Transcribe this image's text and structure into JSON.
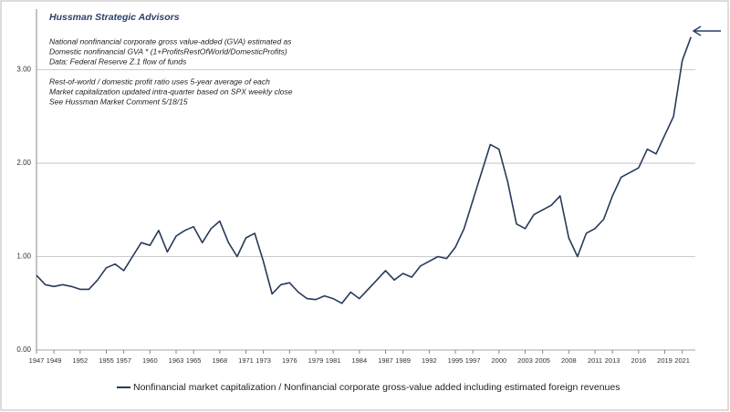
{
  "chart_data": {
    "type": "line",
    "title": "Hussman Strategic Advisors",
    "annotations": [
      "National nonfinancial corporate gross value-added (GVA) estimated as",
      "Domestic nonfinancial GVA * (1+ProfitsRestOfWorld/DomesticProfits)",
      "Data: Federal Reserve Z.1 flow of funds",
      "Rest-of-world / domestic profit ratio uses 5-year average of each",
      "Market capitalization updated intra-quarter  based on SPX weekly close",
      "See Hussman Market Comment 5/18/15"
    ],
    "x": [
      1947,
      1948,
      1949,
      1950,
      1951,
      1952,
      1953,
      1954,
      1955,
      1956,
      1957,
      1958,
      1959,
      1960,
      1961,
      1962,
      1963,
      1964,
      1965,
      1966,
      1967,
      1968,
      1969,
      1970,
      1971,
      1972,
      1973,
      1974,
      1975,
      1976,
      1977,
      1978,
      1979,
      1980,
      1981,
      1982,
      1983,
      1984,
      1985,
      1986,
      1987,
      1988,
      1989,
      1990,
      1991,
      1992,
      1993,
      1994,
      1995,
      1996,
      1997,
      1998,
      1999,
      2000,
      2001,
      2002,
      2003,
      2004,
      2005,
      2006,
      2007,
      2008,
      2009,
      2010,
      2011,
      2012,
      2013,
      2014,
      2015,
      2016,
      2017,
      2018,
      2019,
      2020,
      2021,
      2022
    ],
    "series": [
      {
        "name": "Nonfinancial market capitalization / Nonfinancial corporate gross-value added including estimated foreign revenues",
        "color": "#263a5a",
        "values": [
          0.8,
          0.7,
          0.68,
          0.7,
          0.68,
          0.65,
          0.65,
          0.75,
          0.88,
          0.92,
          0.85,
          1.0,
          1.15,
          1.12,
          1.28,
          1.05,
          1.22,
          1.28,
          1.32,
          1.15,
          1.3,
          1.38,
          1.15,
          1.0,
          1.2,
          1.25,
          0.95,
          0.6,
          0.7,
          0.72,
          0.62,
          0.55,
          0.54,
          0.58,
          0.55,
          0.5,
          0.62,
          0.55,
          0.65,
          0.75,
          0.85,
          0.75,
          0.82,
          0.78,
          0.9,
          0.95,
          1.0,
          0.98,
          1.1,
          1.3,
          1.6,
          1.9,
          2.2,
          2.15,
          1.8,
          1.35,
          1.3,
          1.45,
          1.5,
          1.55,
          1.65,
          1.2,
          1.0,
          1.25,
          1.3,
          1.4,
          1.65,
          1.85,
          1.9,
          1.95,
          2.15,
          2.1,
          2.3,
          2.5,
          3.1,
          3.35
        ]
      }
    ],
    "xlim": [
      1947,
      2022.5
    ],
    "xticks": [
      1947,
      1949,
      1952,
      1955,
      1957,
      1960,
      1963,
      1965,
      1968,
      1971,
      1973,
      1976,
      1979,
      1981,
      1984,
      1987,
      1989,
      1992,
      1995,
      1997,
      2000,
      2003,
      2005,
      2008,
      2011,
      2013,
      2016,
      2019,
      2021
    ],
    "ylim": [
      0,
      3.65
    ],
    "yticks": [
      {
        "value": 0,
        "label": "0.00"
      },
      {
        "value": 1,
        "label": "1.00"
      },
      {
        "value": 2,
        "label": "2.00"
      },
      {
        "value": 3,
        "label": "3.00"
      }
    ],
    "grid": true
  }
}
